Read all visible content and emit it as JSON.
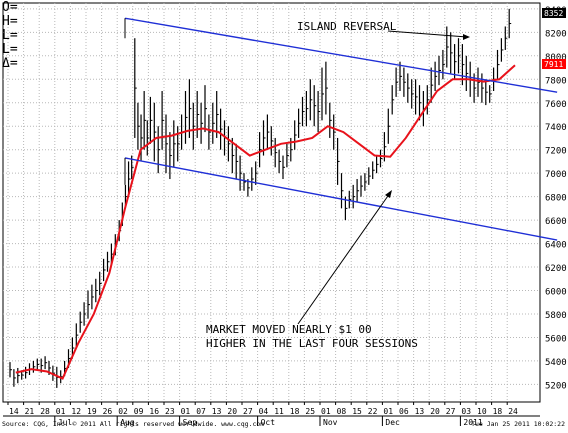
{
  "ohlc_labels": [
    "O=",
    "H=",
    "L=",
    "L=",
    "Δ="
  ],
  "price_badges": [
    {
      "value": "8352",
      "bg": "#000000",
      "fg": "#ffffff"
    },
    {
      "value": "7911",
      "bg": "#ff0000",
      "fg": "#ffffff"
    }
  ],
  "annotations": [
    {
      "id": "island",
      "text": "ISLAND REVERSAL"
    },
    {
      "id": "market1",
      "text": "MARKET MOVED NEARLY $1 00"
    },
    {
      "id": "market2",
      "text": "HIGHER IN THE LAST FOUR SESSIONS"
    }
  ],
  "footer": {
    "source": "Source: CQG, Inc. © 2011 All rights reserved worldwide. www.cqg.com",
    "timestamp": "Tue Jan 25 2011 10:02:22"
  },
  "colors": {
    "bars": "#000000",
    "ma": "#e8121b",
    "trend": "#1f2fd6",
    "grid": "#b8b8b8"
  },
  "chart_data": {
    "type": "ohlc",
    "ylim": [
      5050,
      8450
    ],
    "y_ticks": [
      5200,
      5400,
      5600,
      5800,
      6000,
      6200,
      6400,
      6600,
      6800,
      7000,
      7200,
      7400,
      7600,
      7800,
      8000,
      8200,
      8400
    ],
    "x_day_labels": [
      "14",
      "21",
      "28",
      "01",
      "12",
      "19",
      "26",
      "02",
      "09",
      "16",
      "23",
      "01",
      "07",
      "13",
      "20",
      "27",
      "04",
      "11",
      "18",
      "25",
      "01",
      "08",
      "15",
      "22",
      "01",
      "06",
      "13",
      "20",
      "27",
      "03",
      "10",
      "18",
      "24"
    ],
    "x_month_labels": [
      {
        "label": "Jul",
        "index": 3
      },
      {
        "label": "Aug",
        "index": 7
      },
      {
        "label": "Sep",
        "index": 11
      },
      {
        "label": "Oct",
        "index": 16
      },
      {
        "label": "Nov",
        "index": 20
      },
      {
        "label": "Dec",
        "index": 24
      },
      {
        "label": "2011",
        "index": 29
      }
    ],
    "bar_groups": [
      [
        [
          5390,
          5260
        ],
        [
          5330,
          5180
        ],
        [
          5340,
          5210
        ],
        [
          5320,
          5240
        ]
      ],
      [
        [
          5350,
          5250
        ],
        [
          5380,
          5280
        ],
        [
          5400,
          5300
        ],
        [
          5420,
          5320
        ]
      ],
      [
        [
          5420,
          5300
        ],
        [
          5440,
          5330
        ],
        [
          5400,
          5280
        ],
        [
          5360,
          5230
        ]
      ],
      [
        [
          5350,
          5170
        ],
        [
          5320,
          5210
        ],
        [
          5400,
          5270
        ],
        [
          5500,
          5340
        ]
      ],
      [
        [
          5600,
          5420
        ],
        [
          5720,
          5520
        ],
        [
          5820,
          5640
        ],
        [
          5900,
          5700
        ]
      ],
      [
        [
          6000,
          5760
        ],
        [
          6050,
          5840
        ],
        [
          6100,
          5900
        ],
        [
          6160,
          5960
        ]
      ],
      [
        [
          6270,
          6080
        ],
        [
          6330,
          6160
        ],
        [
          6400,
          6220
        ],
        [
          6480,
          6300
        ]
      ],
      [
        [
          6600,
          6420
        ],
        [
          6750,
          6550
        ],
        [
          6900,
          6700
        ],
        [
          7100,
          6800
        ],
        [
          7150,
          6950
        ]
      ],
      [
        [
          8150,
          7300
        ],
        [
          7600,
          7200
        ],
        [
          7500,
          7100
        ],
        [
          7700,
          7200
        ],
        [
          7450,
          7150
        ]
      ],
      [
        [
          7650,
          7250
        ],
        [
          7600,
          7100
        ],
        [
          7400,
          7000
        ],
        [
          7700,
          7200
        ]
      ],
      [
        [
          7500,
          7000
        ],
        [
          7350,
          6950
        ],
        [
          7450,
          7050
        ],
        [
          7400,
          7100
        ]
      ],
      [
        [
          7500,
          7200
        ],
        [
          7700,
          7250
        ],
        [
          7800,
          7300
        ],
        [
          7600,
          7200
        ]
      ],
      [
        [
          7700,
          7300
        ],
        [
          7600,
          7250
        ],
        [
          7750,
          7350
        ],
        [
          7500,
          7200
        ]
      ],
      [
        [
          7600,
          7250
        ],
        [
          7700,
          7300
        ],
        [
          7550,
          7200
        ],
        [
          7450,
          7150
        ]
      ],
      [
        [
          7400,
          7100
        ],
        [
          7300,
          7000
        ],
        [
          7250,
          6950
        ],
        [
          7150,
          6850
        ]
      ],
      [
        [
          7000,
          6850
        ],
        [
          6950,
          6800
        ],
        [
          7050,
          6850
        ],
        [
          7100,
          6900
        ]
      ],
      [
        [
          7350,
          7050
        ],
        [
          7450,
          7150
        ],
        [
          7500,
          7200
        ],
        [
          7400,
          7150
        ]
      ],
      [
        [
          7300,
          7050
        ],
        [
          7200,
          7000
        ],
        [
          7150,
          6950
        ],
        [
          7250,
          7050
        ]
      ],
      [
        [
          7300,
          7100
        ],
        [
          7450,
          7200
        ],
        [
          7550,
          7300
        ],
        [
          7650,
          7400
        ]
      ],
      [
        [
          7700,
          7400
        ],
        [
          7800,
          7450
        ],
        [
          7750,
          7400
        ],
        [
          7700,
          7350
        ]
      ],
      [
        [
          7900,
          7450
        ],
        [
          7950,
          7500
        ],
        [
          7600,
          7300
        ],
        [
          7500,
          7200
        ]
      ],
      [
        [
          7300,
          6900
        ],
        [
          7000,
          6700
        ],
        [
          6800,
          6600
        ],
        [
          6850,
          6700
        ]
      ],
      [
        [
          6900,
          6700
        ],
        [
          6950,
          6750
        ],
        [
          6980,
          6800
        ],
        [
          7000,
          6850
        ]
      ],
      [
        [
          7050,
          6900
        ],
        [
          7100,
          6950
        ],
        [
          7150,
          7000
        ],
        [
          7200,
          7050
        ]
      ],
      [
        [
          7350,
          7100
        ],
        [
          7550,
          7250
        ],
        [
          7750,
          7500
        ],
        [
          7900,
          7650
        ]
      ],
      [
        [
          7950,
          7700
        ],
        [
          7900,
          7650
        ],
        [
          7850,
          7600
        ],
        [
          7800,
          7550
        ]
      ],
      [
        [
          7800,
          7500
        ],
        [
          7750,
          7450
        ],
        [
          7700,
          7400
        ],
        [
          7750,
          7500
        ]
      ],
      [
        [
          7900,
          7600
        ],
        [
          7950,
          7700
        ],
        [
          8000,
          7750
        ],
        [
          8050,
          7800
        ]
      ],
      [
        [
          8250,
          7900
        ],
        [
          8200,
          7850
        ],
        [
          8100,
          7800
        ],
        [
          8150,
          7850
        ]
      ],
      [
        [
          8100,
          7750
        ],
        [
          8000,
          7700
        ],
        [
          7950,
          7650
        ],
        [
          7850,
          7600
        ]
      ],
      [
        [
          7900,
          7650
        ],
        [
          7850,
          7600
        ],
        [
          7800,
          7580
        ],
        [
          7750,
          7600
        ]
      ],
      [
        [
          7900,
          7700
        ],
        [
          8050,
          7800
        ],
        [
          8150,
          7950
        ],
        [
          8250,
          8050
        ]
      ],
      [
        [
          8400,
          8150
        ]
      ]
    ],
    "moving_average": [
      [
        0,
        5300
      ],
      [
        1,
        5330
      ],
      [
        2,
        5310
      ],
      [
        3,
        5250
      ],
      [
        4,
        5550
      ],
      [
        5,
        5800
      ],
      [
        6,
        6150
      ],
      [
        7,
        6700
      ],
      [
        8,
        7200
      ],
      [
        9,
        7300
      ],
      [
        10,
        7320
      ],
      [
        11,
        7360
      ],
      [
        12,
        7380
      ],
      [
        13,
        7350
      ],
      [
        14,
        7250
      ],
      [
        15,
        7150
      ],
      [
        16,
        7200
      ],
      [
        17,
        7250
      ],
      [
        18,
        7270
      ],
      [
        19,
        7300
      ],
      [
        20,
        7400
      ],
      [
        21,
        7350
      ],
      [
        22,
        7250
      ],
      [
        23,
        7150
      ],
      [
        24,
        7140
      ],
      [
        25,
        7300
      ],
      [
        26,
        7500
      ],
      [
        27,
        7700
      ],
      [
        28,
        7800
      ],
      [
        29,
        7800
      ],
      [
        30,
        7780
      ],
      [
        31,
        7800
      ],
      [
        32,
        7920
      ]
    ],
    "trend_upper": {
      "start": [
        7.5,
        8320
      ],
      "end": [
        35.2,
        7690
      ]
    },
    "trend_lower": {
      "start": [
        7.5,
        7130
      ],
      "end": [
        35.2,
        6430
      ]
    }
  }
}
